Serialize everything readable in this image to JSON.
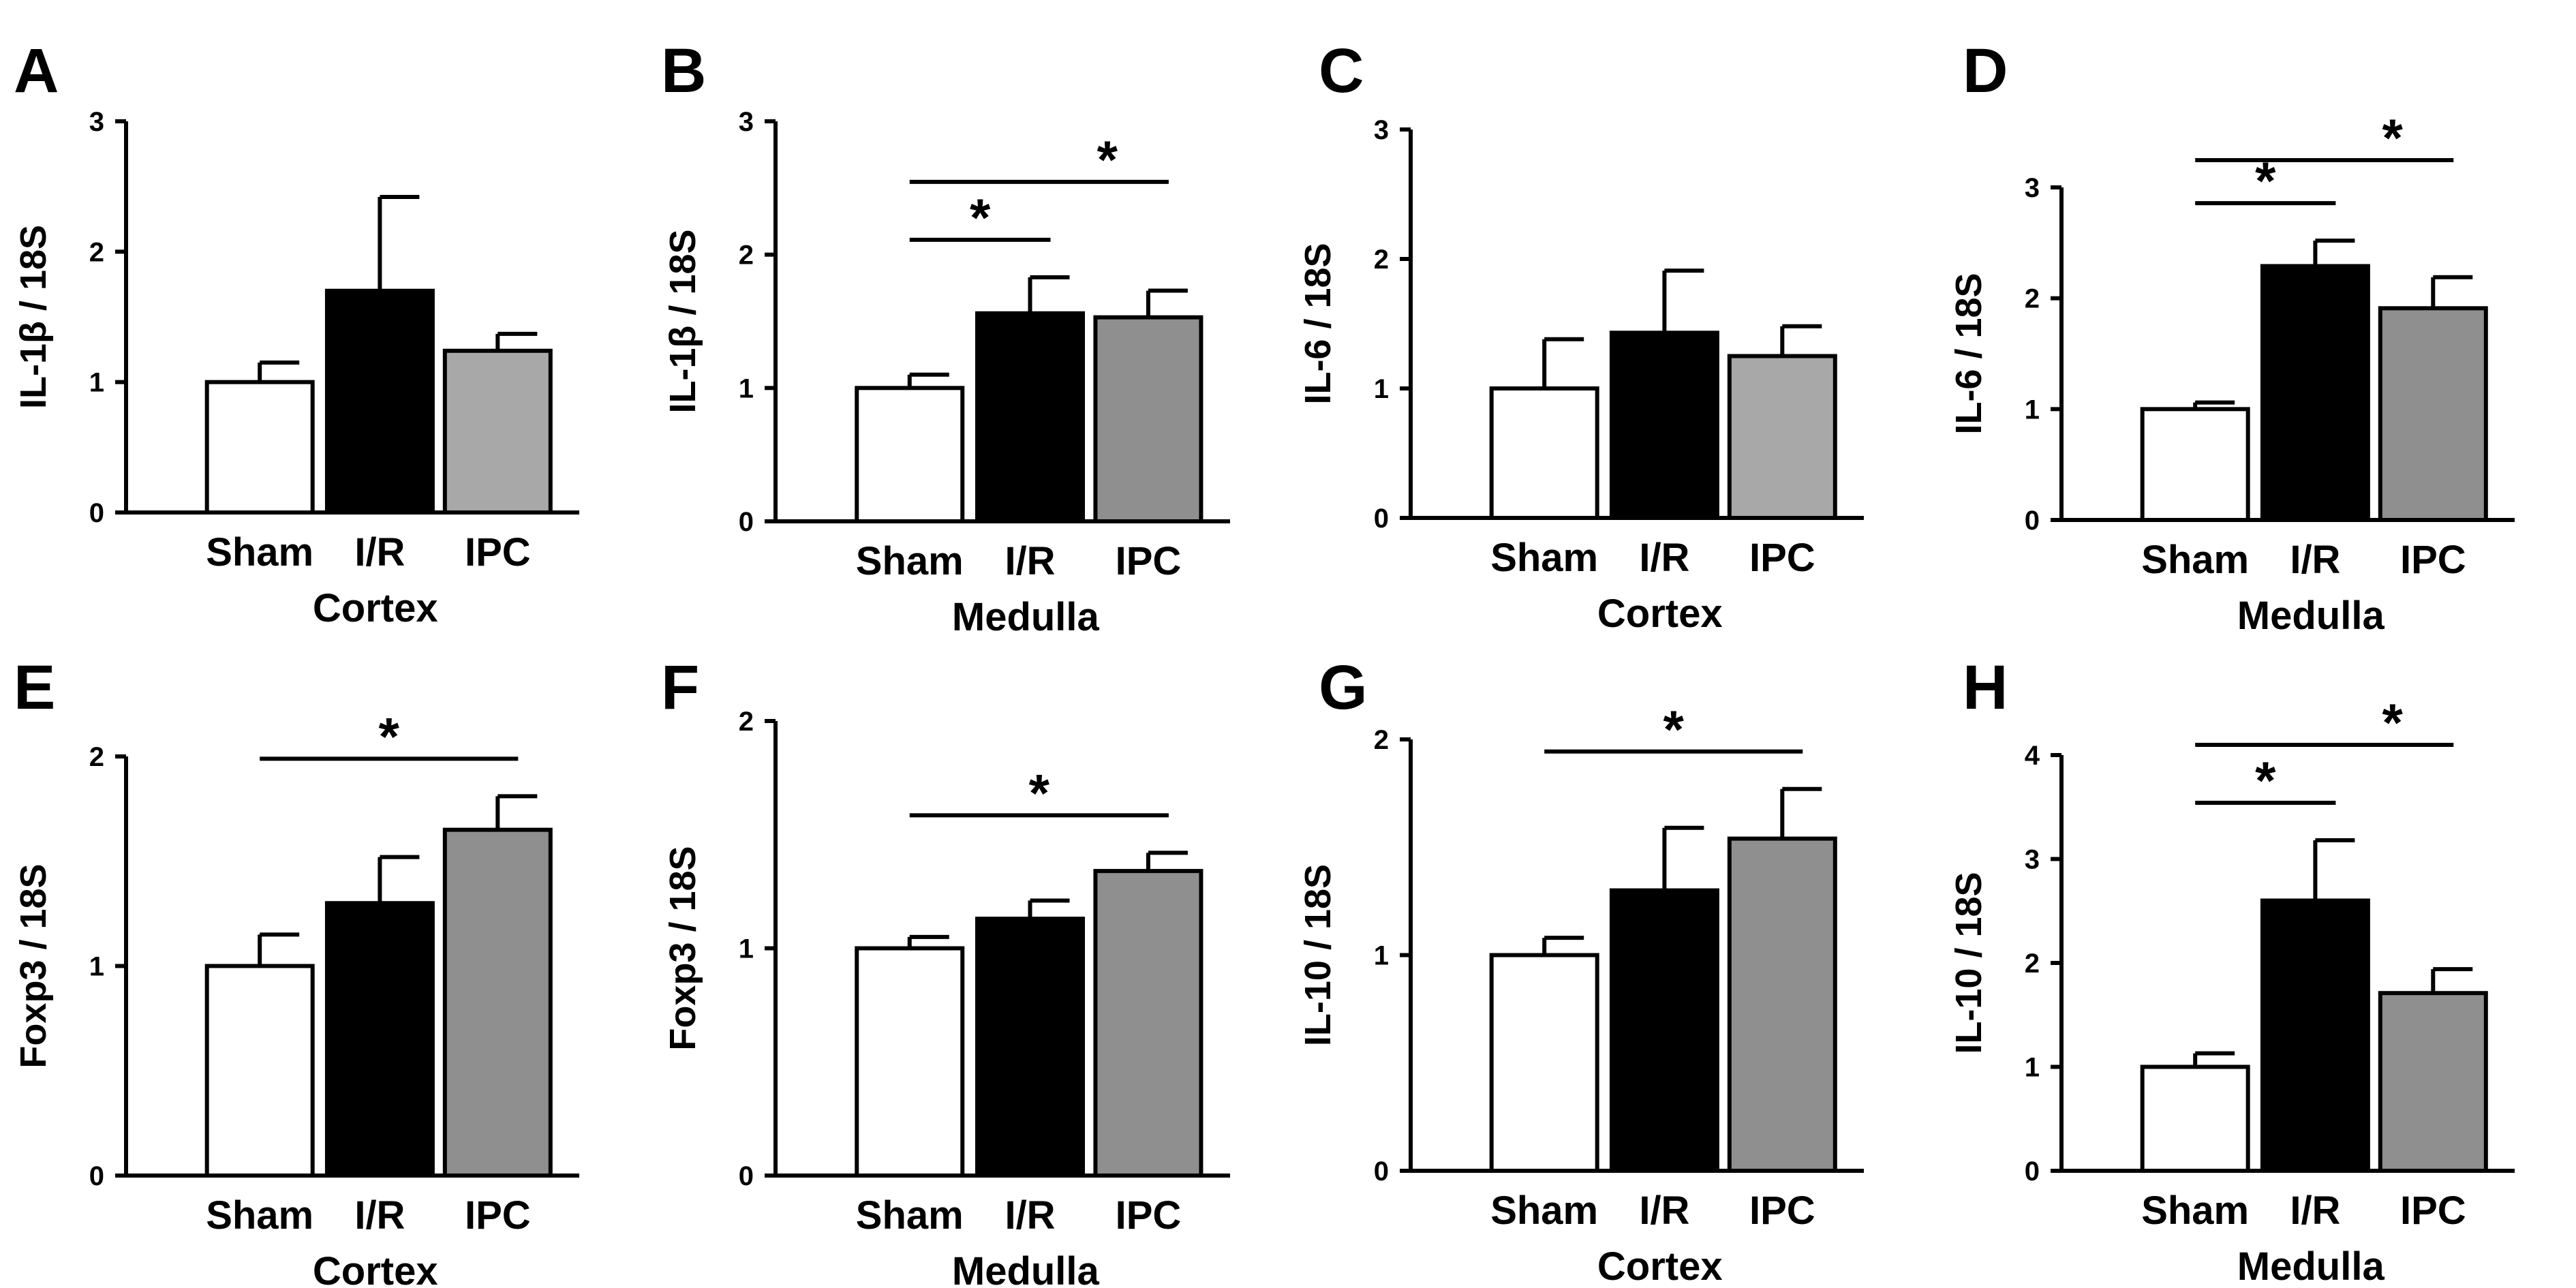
{
  "chart_data": [
    {
      "type": "bar",
      "panel_label": "A",
      "categories": [
        "Sham",
        "I/R",
        "IPC"
      ],
      "values": [
        1.0,
        1.7,
        1.24
      ],
      "errors": [
        0.15,
        0.72,
        0.13
      ],
      "xlabel": "Cortex",
      "ylabel": "IL-1β  / 18S",
      "ylim": [
        0,
        3
      ],
      "yticks": [
        "0",
        "1",
        "2",
        "3"
      ],
      "bar_colors": [
        "#ffffff",
        "#000000",
        "#a8a8a8"
      ],
      "significance": []
    },
    {
      "type": "bar",
      "panel_label": "B",
      "categories": [
        "Sham",
        "I/R",
        "IPC"
      ],
      "values": [
        1.0,
        1.56,
        1.53
      ],
      "errors": [
        0.1,
        0.27,
        0.2
      ],
      "xlabel": "Medulla",
      "ylabel": "IL-1β  / 18S",
      "ylim": [
        0,
        3
      ],
      "yticks": [
        "0",
        "1",
        "2",
        "3"
      ],
      "bar_colors": [
        "#ffffff",
        "#000000",
        "#8f8f8f"
      ],
      "significance": [
        {
          "from": 0,
          "to": 1,
          "level": 0,
          "label": "*"
        },
        {
          "from": 0,
          "to": 2,
          "level": 1,
          "label": "*"
        }
      ]
    },
    {
      "type": "bar",
      "panel_label": "C",
      "categories": [
        "Sham",
        "I/R",
        "IPC"
      ],
      "values": [
        1.0,
        1.43,
        1.25
      ],
      "errors": [
        0.38,
        0.48,
        0.23
      ],
      "xlabel": "Cortex",
      "ylabel": "IL-6 / 18S",
      "ylim": [
        0,
        3
      ],
      "yticks": [
        "0",
        "1",
        "2",
        "3"
      ],
      "bar_colors": [
        "#ffffff",
        "#000000",
        "#a8a8a8"
      ],
      "significance": []
    },
    {
      "type": "bar",
      "panel_label": "D",
      "categories": [
        "Sham",
        "I/R",
        "IPC"
      ],
      "values": [
        1.0,
        2.29,
        1.91
      ],
      "errors": [
        0.06,
        0.23,
        0.28
      ],
      "xlabel": "Medulla",
      "ylabel": "IL-6 / 18S",
      "ylim": [
        0,
        3
      ],
      "yticks": [
        "0",
        "1",
        "2",
        "3"
      ],
      "bar_colors": [
        "#ffffff",
        "#000000",
        "#8f8f8f"
      ],
      "significance": [
        {
          "from": 0,
          "to": 1,
          "level": 0,
          "label": "*"
        },
        {
          "from": 0,
          "to": 2,
          "level": 1,
          "label": "*"
        }
      ]
    },
    {
      "type": "bar",
      "panel_label": "E",
      "categories": [
        "Sham",
        "I/R",
        "IPC"
      ],
      "values": [
        1.0,
        1.3,
        1.65
      ],
      "errors": [
        0.15,
        0.22,
        0.16
      ],
      "xlabel": "Cortex",
      "ylabel": "Foxp3 / 18S",
      "ylim": [
        0,
        2
      ],
      "yticks": [
        "0",
        "1",
        "2"
      ],
      "bar_colors": [
        "#ffffff",
        "#000000",
        "#8f8f8f"
      ],
      "significance": [
        {
          "from": 0,
          "to": 2,
          "level": 0,
          "label": "*"
        }
      ]
    },
    {
      "type": "bar",
      "panel_label": "F",
      "categories": [
        "Sham",
        "I/R",
        "IPC"
      ],
      "values": [
        1.0,
        1.13,
        1.34
      ],
      "errors": [
        0.05,
        0.08,
        0.08
      ],
      "xlabel": "Medulla",
      "ylabel": "Foxp3 / 18S",
      "ylim": [
        0,
        2
      ],
      "yticks": [
        "0",
        "1",
        "2"
      ],
      "bar_colors": [
        "#ffffff",
        "#000000",
        "#8f8f8f"
      ],
      "significance": [
        {
          "from": 0,
          "to": 2,
          "level": 0,
          "label": "*"
        }
      ]
    },
    {
      "type": "bar",
      "panel_label": "G",
      "categories": [
        "Sham",
        "I/R",
        "IPC"
      ],
      "values": [
        1.0,
        1.3,
        1.54
      ],
      "errors": [
        0.08,
        0.29,
        0.23
      ],
      "xlabel": "Cortex",
      "ylabel": "IL-10 / 18S",
      "ylim": [
        0,
        2
      ],
      "yticks": [
        "0",
        "1",
        "2"
      ],
      "bar_colors": [
        "#ffffff",
        "#000000",
        "#8f8f8f"
      ],
      "significance": [
        {
          "from": 0,
          "to": 2,
          "level": 0,
          "label": "*"
        }
      ]
    },
    {
      "type": "bar",
      "panel_label": "H",
      "categories": [
        "Sham",
        "I/R",
        "IPC"
      ],
      "values": [
        1.0,
        2.6,
        1.71
      ],
      "errors": [
        0.13,
        0.58,
        0.23
      ],
      "xlabel": "Medulla",
      "ylabel": "IL-10 / 18S",
      "ylim": [
        0,
        4
      ],
      "yticks": [
        "0",
        "1",
        "2",
        "3",
        "4"
      ],
      "bar_colors": [
        "#ffffff",
        "#000000",
        "#8f8f8f"
      ],
      "significance": [
        {
          "from": 0,
          "to": 1,
          "level": 0,
          "label": "*"
        },
        {
          "from": 0,
          "to": 2,
          "level": 1,
          "label": "*"
        }
      ]
    }
  ]
}
